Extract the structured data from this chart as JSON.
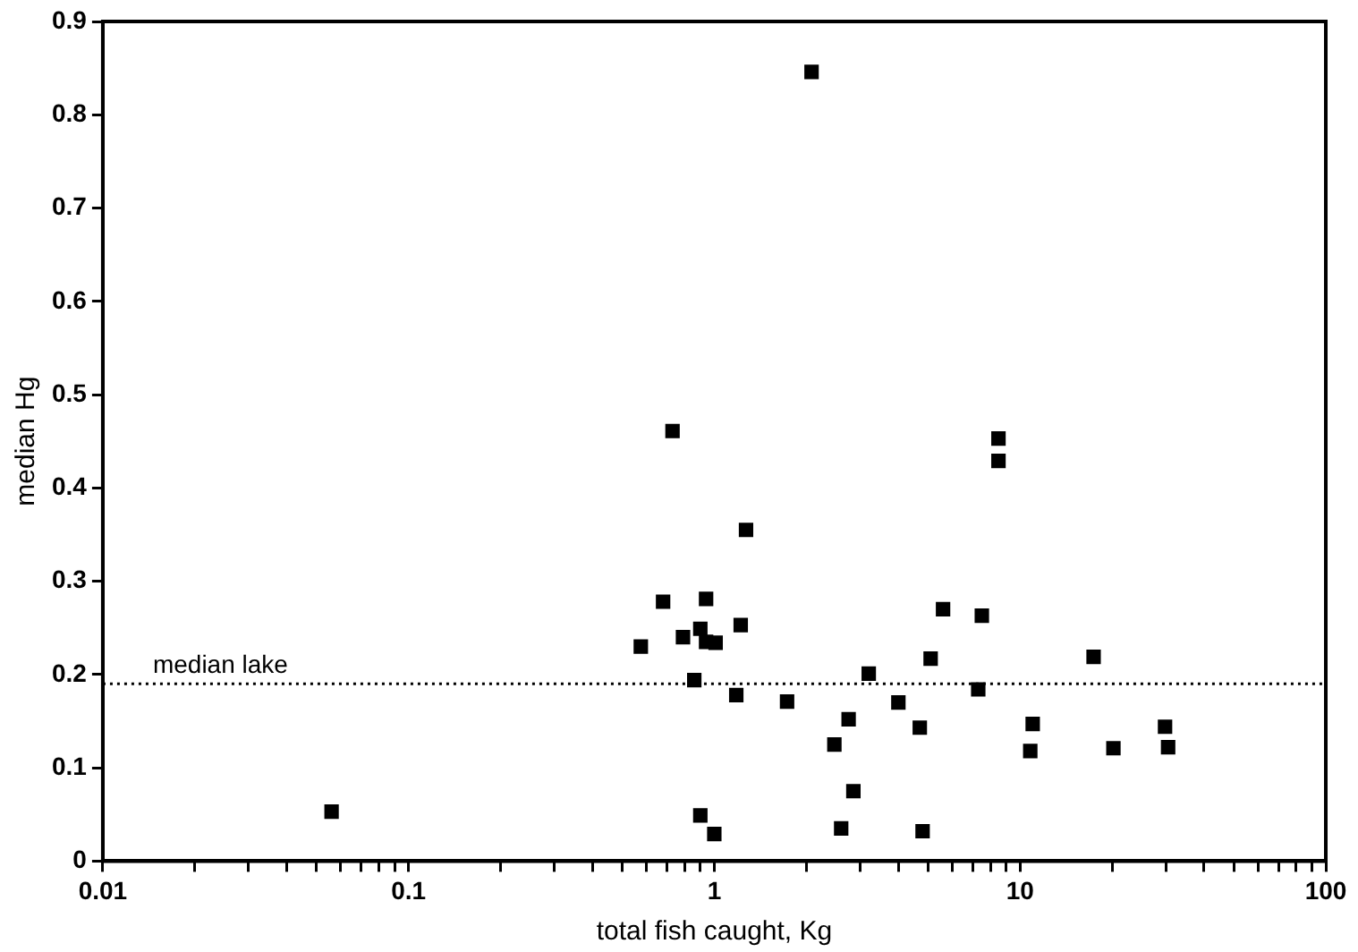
{
  "chart_data": {
    "type": "scatter",
    "xlabel": "total fish caught, Kg",
    "ylabel": "median Hg",
    "log": "x",
    "marker": "square",
    "grid": false,
    "legend": false,
    "xlim": [
      0.01,
      100
    ],
    "xticks": [
      0.01,
      {
        "value": 0.02,
        "label": null
      },
      {
        "value": 0.03,
        "label": null
      },
      {
        "value": 0.04,
        "label": null
      },
      {
        "value": 0.05,
        "label": null
      },
      {
        "value": 0.06,
        "label": null
      },
      {
        "value": 0.07,
        "label": null
      },
      {
        "value": 0.08,
        "label": null
      },
      {
        "value": 0.09,
        "label": null
      },
      0.1,
      {
        "value": 0.2,
        "label": null
      },
      {
        "value": 0.3,
        "label": null
      },
      {
        "value": 0.4,
        "label": null
      },
      {
        "value": 0.5,
        "label": null
      },
      {
        "value": 0.6,
        "label": null
      },
      {
        "value": 0.7,
        "label": null
      },
      {
        "value": 0.8,
        "label": null
      },
      {
        "value": 0.9,
        "label": null
      },
      1,
      {
        "value": 2,
        "label": null
      },
      {
        "value": 3,
        "label": null
      },
      {
        "value": 4,
        "label": null
      },
      {
        "value": 5,
        "label": null
      },
      {
        "value": 6,
        "label": null
      },
      {
        "value": 7,
        "label": null
      },
      {
        "value": 8,
        "label": null
      },
      {
        "value": 9,
        "label": null
      },
      10,
      {
        "value": 20,
        "label": null
      },
      {
        "value": 30,
        "label": null
      },
      {
        "value": 40,
        "label": null
      },
      {
        "value": 50,
        "label": null
      },
      {
        "value": 60,
        "label": null
      },
      {
        "value": 70,
        "label": null
      },
      {
        "value": 80,
        "label": null
      },
      {
        "value": 90,
        "label": null
      },
      100
    ],
    "ylim": [
      0,
      0.9
    ],
    "yticks": [
      0,
      0.1,
      0.2,
      0.3,
      0.4,
      0.5,
      0.6,
      0.7,
      0.8,
      0.9
    ],
    "ref_lines": [
      {
        "axis": "y",
        "value": 0.19,
        "label": "median lake",
        "line_style": "dotted",
        "color": "#000000"
      }
    ],
    "series": [
      {
        "color": "#000000",
        "x": [
          0.056,
          0.73,
          8.5,
          8.5,
          1.27,
          0.68,
          0.94,
          5.6,
          7.5,
          1.22,
          0.9,
          0.79,
          0.94,
          1.01,
          0.575,
          5.1,
          3.2,
          0.86,
          7.3,
          1.18,
          1.73,
          4.0,
          2.75,
          4.7,
          2.47,
          2.85,
          0.9,
          1.0,
          2.6,
          4.8,
          17.4,
          11.0,
          10.8,
          20.2,
          29.8,
          30.5,
          2.08
        ],
        "values": [
          0.053,
          0.461,
          0.453,
          0.429,
          0.355,
          0.278,
          0.281,
          0.27,
          0.263,
          0.253,
          0.249,
          0.24,
          0.235,
          0.234,
          0.23,
          0.217,
          0.201,
          0.194,
          0.184,
          0.178,
          0.171,
          0.17,
          0.152,
          0.143,
          0.125,
          0.075,
          0.049,
          0.029,
          0.035,
          0.032,
          0.219,
          0.147,
          0.118,
          0.121,
          0.144,
          0.122,
          0.846
        ]
      }
    ]
  }
}
